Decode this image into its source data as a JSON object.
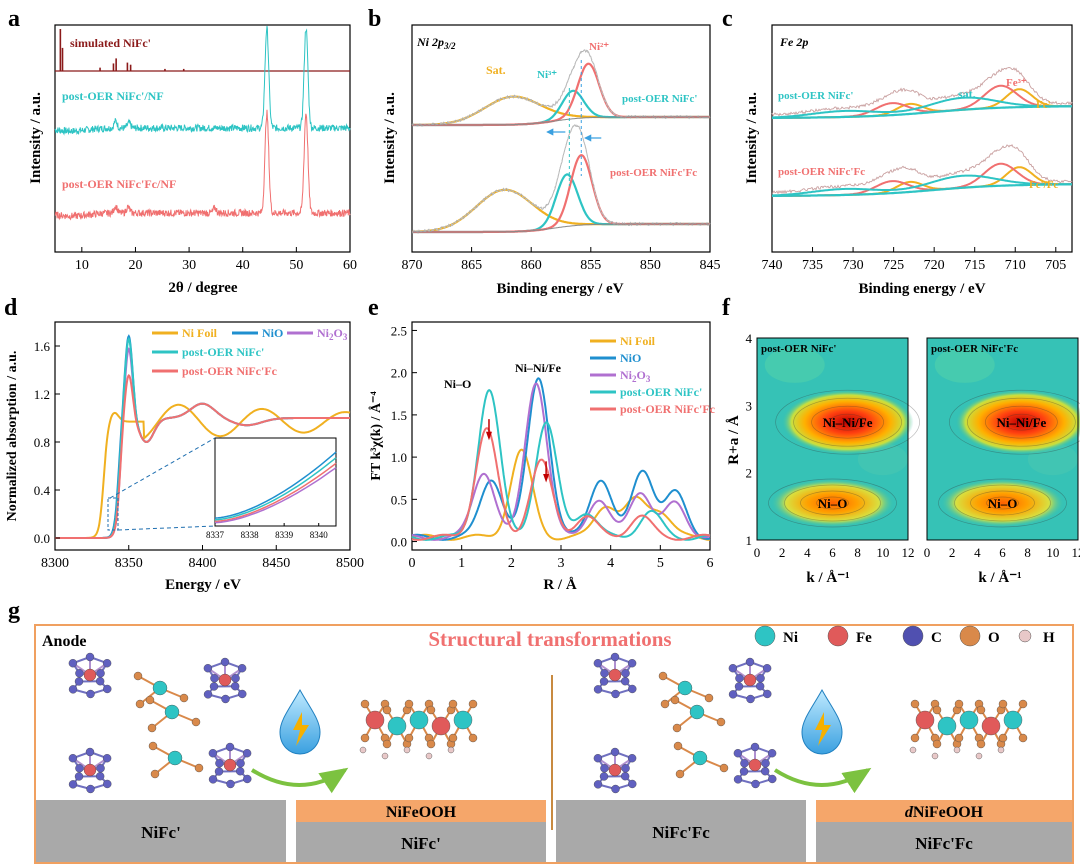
{
  "panel_labels": {
    "a": "a",
    "b": "b",
    "c": "c",
    "d": "d",
    "e": "e",
    "f": "f",
    "g": "g"
  },
  "colors": {
    "darkred": "#8b1a1a",
    "teal": "#2ec4c4",
    "salmon": "#f07070",
    "orange": "#f0b020",
    "blue": "#1f8fcf",
    "purple": "#b070d0",
    "gray": "#b0b0b0",
    "frame": "#f0a060",
    "slab_gray": "#a9a9a9",
    "slab_orange": "#f5a66a"
  },
  "chart_data": [
    {
      "id": "a",
      "type": "line",
      "xlabel": "2θ / degree",
      "ylabel": "Intensity / a.u.",
      "xlim": [
        5,
        60
      ],
      "xticks": [
        10,
        20,
        30,
        40,
        50,
        60
      ],
      "series": [
        {
          "name": "simulated NiFc'",
          "color": "#8b1a1a",
          "kind": "sticks",
          "sticks": [
            [
              6.0,
              1.0
            ],
            [
              6.4,
              0.55
            ],
            [
              13.4,
              0.08
            ],
            [
              15.9,
              0.18
            ],
            [
              16.4,
              0.3
            ],
            [
              18.5,
              0.2
            ],
            [
              19.1,
              0.15
            ],
            [
              25.5,
              0.05
            ],
            [
              29.0,
              0.05
            ]
          ]
        },
        {
          "name": "post-OER NiFc'/NF",
          "color": "#2ec4c4",
          "kind": "pattern",
          "peaks": [
            [
              16.3,
              0.35
            ],
            [
              18.8,
              0.25
            ],
            [
              44.5,
              5.0
            ],
            [
              51.8,
              5.0
            ]
          ]
        },
        {
          "name": "post-OER NiFc'Fc/NF",
          "color": "#f07070",
          "kind": "pattern",
          "peaks": [
            [
              16.3,
              0.35
            ],
            [
              18.6,
              0.3
            ],
            [
              34.8,
              0.25
            ],
            [
              44.5,
              5.0
            ],
            [
              51.8,
              5.0
            ]
          ]
        }
      ]
    },
    {
      "id": "b",
      "type": "line",
      "title": "Ni 2p3/2",
      "xlabel": "Binding energy / eV",
      "ylabel": "Intensity / a.u.",
      "xlim": [
        870,
        845
      ],
      "xticks": [
        870,
        865,
        860,
        855,
        850,
        845
      ],
      "labels": {
        "sat": "Sat.",
        "ni3": "Ni³⁺",
        "ni2": "Ni²⁺",
        "top": "post-OER NiFc'",
        "bottom": "post-OER NiFc'Fc"
      },
      "series": [
        {
          "name": "Sat.",
          "color": "#f0b020",
          "center_top": 861.5,
          "center_bottom": 862.2
        },
        {
          "name": "Ni3+",
          "color": "#2ec4c4",
          "center_top": 856.5,
          "center_bottom": 857.0
        },
        {
          "name": "Ni2+",
          "color": "#f07070",
          "center_top": 855.2,
          "center_bottom": 855.8
        }
      ]
    },
    {
      "id": "c",
      "type": "line",
      "title": "Fe 2p",
      "xlabel": "Binding energy / eV",
      "ylabel": "Intensity / a.u.",
      "xlim": [
        740,
        703
      ],
      "xticks": [
        740,
        735,
        730,
        725,
        720,
        715,
        710,
        705
      ],
      "labels": {
        "sat": "sat.",
        "fe3": "Fe³⁺",
        "fc": "Fc'",
        "fcfc": "Fc'/Fc",
        "top": "post-OER NiFc'",
        "bottom": "post-OER NiFc'Fc"
      }
    },
    {
      "id": "d",
      "type": "line",
      "xlabel": "Energy / eV",
      "ylabel": "Normalized absorption / a.u.",
      "xlim": [
        8300,
        8500
      ],
      "ylim": [
        -0.1,
        1.8
      ],
      "xticks": [
        8300,
        8350,
        8400,
        8450,
        8500
      ],
      "yticks": [
        0.0,
        0.4,
        0.8,
        1.2,
        1.6
      ],
      "inset": {
        "xlim": [
          8337,
          8340.5
        ],
        "xticks": [
          8337,
          8338,
          8339,
          8340
        ]
      },
      "series": [
        {
          "name": "Ni Foil",
          "color": "#f0b020",
          "edge": 8333,
          "peak": 0.95
        },
        {
          "name": "NiO",
          "color": "#1f8fcf",
          "edge": 8343,
          "peak": 1.7
        },
        {
          "name": "Ni2O3",
          "color": "#b070d0",
          "edge": 8344,
          "peak": 1.6
        },
        {
          "name": "post-OER NiFc'",
          "color": "#2ec4c4",
          "edge": 8343.5,
          "peak": 1.68
        },
        {
          "name": "post-OER NiFc'Fc",
          "color": "#f07070",
          "edge": 8344,
          "peak": 1.38
        }
      ]
    },
    {
      "id": "e",
      "type": "line",
      "xlabel": "R / Å",
      "ylabel": "FT k³χ(k) / Å⁻⁴",
      "xlim": [
        0,
        6
      ],
      "ylim": [
        -0.1,
        2.6
      ],
      "xticks": [
        0,
        1,
        2,
        3,
        4,
        5,
        6
      ],
      "yticks": [
        0.0,
        0.5,
        1.0,
        1.5,
        2.0,
        2.5
      ],
      "annotations": {
        "nio": "Ni–O",
        "ninife": "Ni–Ni/Fe"
      },
      "series": [
        {
          "name": "Ni Foil",
          "color": "#f0b020",
          "peaks": [
            [
              2.2,
              1.02
            ],
            [
              3.9,
              0.38
            ],
            [
              4.5,
              0.42
            ],
            [
              5.0,
              0.3
            ]
          ]
        },
        {
          "name": "NiO",
          "color": "#1f8fcf",
          "peaks": [
            [
              1.6,
              0.7
            ],
            [
              2.55,
              1.9
            ],
            [
              3.8,
              0.7
            ],
            [
              4.65,
              0.8
            ],
            [
              5.3,
              0.52
            ]
          ]
        },
        {
          "name": "Ni2O3",
          "color": "#b070d0",
          "peaks": [
            [
              1.45,
              0.78
            ],
            [
              2.5,
              1.85
            ],
            [
              3.75,
              0.45
            ],
            [
              4.6,
              0.55
            ],
            [
              5.3,
              0.4
            ]
          ]
        },
        {
          "name": "post-OER NiFc'",
          "color": "#2ec4c4",
          "peaks": [
            [
              1.55,
              1.75
            ],
            [
              2.7,
              1.35
            ],
            [
              3.5,
              0.3
            ],
            [
              4.8,
              0.3
            ]
          ]
        },
        {
          "name": "post-OER NiFc'Fc",
          "color": "#f07070",
          "peaks": [
            [
              1.5,
              1.28
            ],
            [
              2.6,
              0.9
            ],
            [
              3.5,
              0.25
            ],
            [
              4.6,
              0.25
            ]
          ]
        }
      ]
    },
    {
      "id": "f",
      "type": "heatmap",
      "xlabel": "k / Å⁻¹",
      "ylabel": "R+a / Å",
      "xlim": [
        0,
        12
      ],
      "ylim": [
        1,
        4
      ],
      "xticks": [
        0,
        2,
        4,
        6,
        8,
        10,
        12
      ],
      "yticks": [
        1,
        2,
        3,
        4
      ],
      "maps": [
        {
          "title": "post-OER NiFc'",
          "spots": [
            {
              "label": "Ni–O",
              "k": 6.0,
              "r": 1.55
            },
            {
              "label": "Ni–Ni/Fe",
              "k": 7.2,
              "r": 2.75
            }
          ]
        },
        {
          "title": "post-OER NiFc'Fc",
          "spots": [
            {
              "label": "Ni–O",
              "k": 6.0,
              "r": 1.55
            },
            {
              "label": "Ni–Ni/Fe",
              "k": 7.5,
              "r": 2.75
            }
          ]
        }
      ]
    }
  ],
  "scheme": {
    "anode": "Anode",
    "title": "Structural transformations",
    "legend": [
      {
        "label": "Ni",
        "color": "#2ec4c4"
      },
      {
        "label": "Fe",
        "color": "#e05a5a"
      },
      {
        "label": "C",
        "color": "#5050b0"
      },
      {
        "label": "O",
        "color": "#d9894a"
      },
      {
        "label": "H",
        "color": "#e8c8c8"
      }
    ],
    "slabs": {
      "s1": "NiFc'",
      "s2_top": "NiFeOOH",
      "s2": "NiFc'",
      "s3": "NiFc'Fc",
      "s4_top_prefix": "d",
      "s4_top": "NiFeOOH",
      "s4": "NiFc'Fc"
    }
  }
}
